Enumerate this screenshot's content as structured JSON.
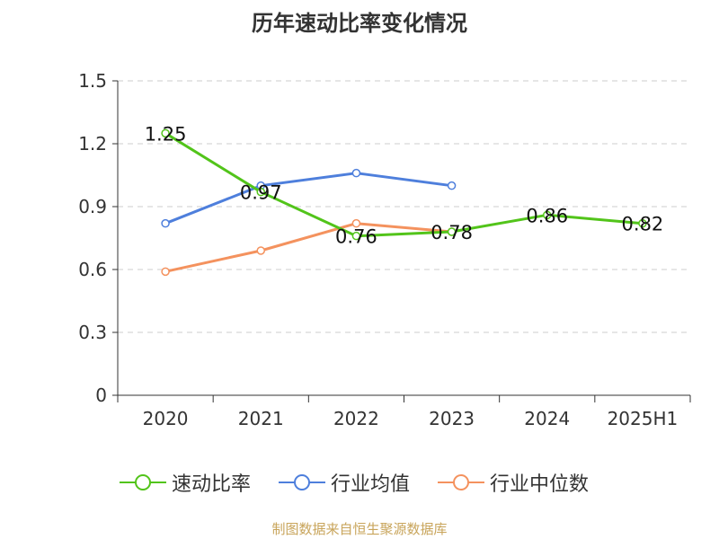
{
  "title": "历年速动比率变化情况",
  "source": "制图数据来自恒生聚源数据库",
  "chart_data": {
    "type": "line",
    "categories": [
      "2020",
      "2021",
      "2022",
      "2023",
      "2024",
      "2025H1"
    ],
    "yticks": [
      "0",
      "0.3",
      "0.6",
      "0.9",
      "1.2",
      "1.5"
    ],
    "ylim": [
      0,
      1.5
    ],
    "grid": true,
    "legend_position": "bottom",
    "series": [
      {
        "name": "速动比率",
        "color": "#52c41a",
        "values": [
          1.25,
          0.97,
          0.76,
          0.78,
          0.86,
          0.82
        ],
        "labels": [
          "1.25",
          "0.97",
          "0.76",
          "0.78",
          "0.86",
          "0.82"
        ]
      },
      {
        "name": "行业均值",
        "color": "#4e7fdc",
        "values": [
          0.82,
          1.0,
          1.06,
          1.0,
          null,
          null
        ]
      },
      {
        "name": "行业中位数",
        "color": "#f4925e",
        "values": [
          0.59,
          0.69,
          0.82,
          0.78,
          null,
          null
        ]
      }
    ]
  }
}
